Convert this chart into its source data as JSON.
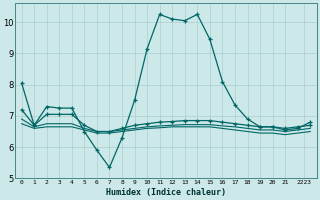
{
  "title": "",
  "xlabel": "Humidex (Indice chaleur)",
  "ylabel": "",
  "background_color": "#cce8e8",
  "grid_color": "#aacfcf",
  "line_color": "#006666",
  "xlim": [
    -0.5,
    23.5
  ],
  "ylim": [
    5,
    10.6
  ],
  "yticks": [
    5,
    6,
    7,
    8,
    9,
    10
  ],
  "xtick_labels": [
    "0",
    "1",
    "2",
    "3",
    "4",
    "5",
    "6",
    "7",
    "8",
    "9",
    "10",
    "11",
    "12",
    "13",
    "14",
    "15",
    "16",
    "17",
    "18",
    "19",
    "20",
    "21",
    "2223"
  ],
  "xtick_positions": [
    0,
    1,
    2,
    3,
    4,
    5,
    6,
    7,
    8,
    9,
    10,
    11,
    12,
    13,
    14,
    15,
    16,
    17,
    18,
    19,
    20,
    21,
    22.5
  ],
  "series": [
    {
      "x": [
        0,
        1,
        2,
        3,
        4,
        5,
        6,
        7,
        8,
        9,
        10,
        11,
        12,
        13,
        14,
        15,
        16,
        17,
        18,
        19,
        20,
        21,
        22,
        23
      ],
      "y": [
        8.05,
        6.7,
        7.3,
        7.25,
        7.25,
        6.5,
        5.9,
        5.35,
        6.3,
        7.5,
        9.15,
        10.25,
        10.1,
        10.05,
        10.25,
        9.45,
        8.1,
        7.35,
        6.9,
        6.65,
        6.65,
        6.55,
        6.6,
        6.8
      ],
      "marker": true
    },
    {
      "x": [
        0,
        1,
        2,
        3,
        4,
        5,
        6,
        7,
        8,
        9,
        10,
        11,
        12,
        13,
        14,
        15,
        16,
        17,
        18,
        19,
        20,
        21,
        22,
        23
      ],
      "y": [
        6.75,
        6.6,
        6.65,
        6.65,
        6.65,
        6.55,
        6.45,
        6.45,
        6.5,
        6.55,
        6.6,
        6.62,
        6.65,
        6.65,
        6.65,
        6.65,
        6.6,
        6.55,
        6.5,
        6.45,
        6.45,
        6.4,
        6.45,
        6.5
      ],
      "marker": false
    },
    {
      "x": [
        0,
        1,
        2,
        3,
        4,
        5,
        6,
        7,
        8,
        9,
        10,
        11,
        12,
        13,
        14,
        15,
        16,
        17,
        18,
        19,
        20,
        21,
        22,
        23
      ],
      "y": [
        6.9,
        6.65,
        6.75,
        6.75,
        6.75,
        6.6,
        6.5,
        6.5,
        6.55,
        6.6,
        6.65,
        6.68,
        6.7,
        6.72,
        6.72,
        6.72,
        6.68,
        6.65,
        6.6,
        6.55,
        6.55,
        6.5,
        6.55,
        6.6
      ],
      "marker": false
    },
    {
      "x": [
        0,
        1,
        2,
        3,
        4,
        5,
        6,
        7,
        8,
        9,
        10,
        11,
        12,
        13,
        14,
        15,
        16,
        17,
        18,
        19,
        20,
        21,
        22,
        23
      ],
      "y": [
        7.2,
        6.7,
        7.05,
        7.05,
        7.05,
        6.7,
        6.5,
        6.5,
        6.6,
        6.7,
        6.75,
        6.8,
        6.82,
        6.85,
        6.85,
        6.85,
        6.8,
        6.75,
        6.7,
        6.65,
        6.65,
        6.6,
        6.65,
        6.7
      ],
      "marker": true
    }
  ]
}
